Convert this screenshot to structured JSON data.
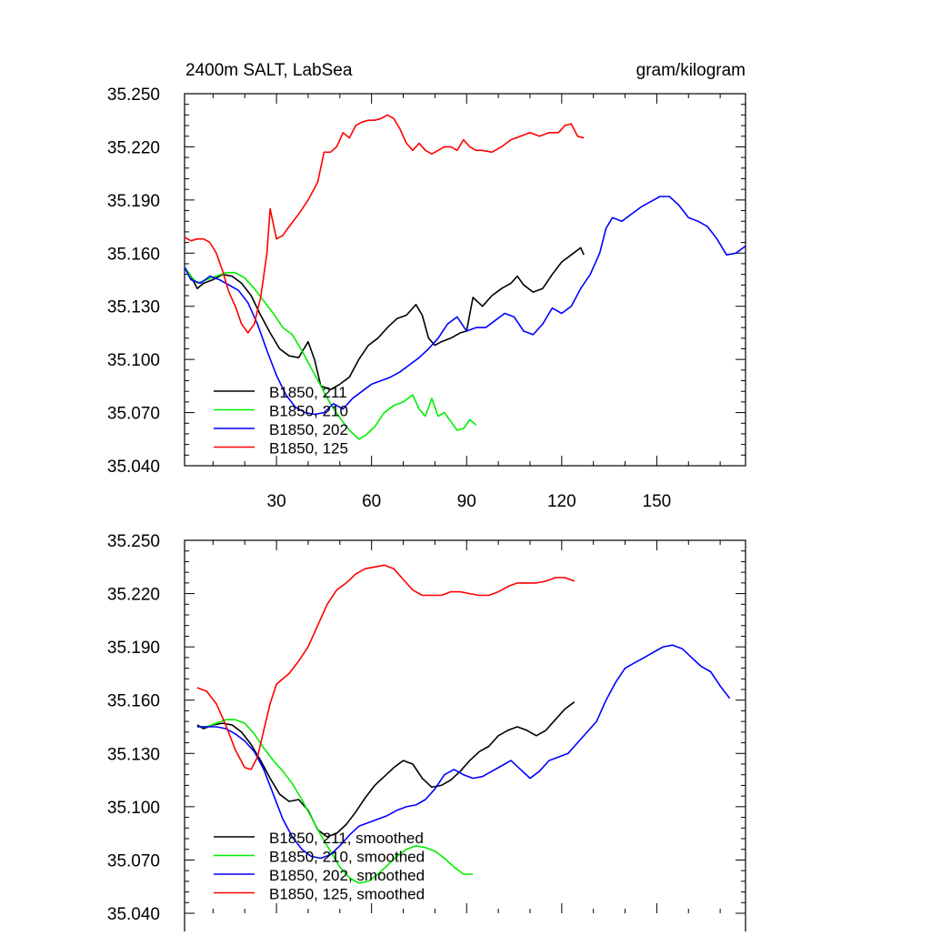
{
  "chart_data": [
    {
      "type": "line",
      "title_left": "2400m SALT, LabSea",
      "title_right": "gram/kilogram",
      "xlim": [
        1,
        178
      ],
      "ylim": [
        35.04,
        35.25
      ],
      "xticks": [
        30,
        60,
        90,
        120,
        150
      ],
      "xtick_labels": [
        "30",
        "60",
        "90",
        "120",
        "150"
      ],
      "yticks": [
        35.04,
        35.07,
        35.1,
        35.13,
        35.16,
        35.19,
        35.22,
        35.25
      ],
      "ytick_labels": [
        "35.040",
        "35.070",
        "35.100",
        "35.130",
        "35.160",
        "35.190",
        "35.220",
        "35.250"
      ],
      "legend_position": "bottom-left",
      "series": [
        {
          "name": "B1850, 211",
          "color": "#000000",
          "x": [
            1,
            3,
            5,
            7,
            10,
            13,
            16,
            19,
            22,
            25,
            28,
            31,
            34,
            37,
            40,
            42,
            44,
            47,
            50,
            53,
            56,
            59,
            62,
            65,
            68,
            71,
            74,
            76,
            78,
            80,
            82,
            85,
            88,
            90,
            92,
            95,
            98,
            101,
            104,
            106,
            108,
            111,
            114,
            117,
            120,
            123,
            126,
            127
          ],
          "y": [
            35.152,
            35.147,
            35.14,
            35.143,
            35.145,
            35.148,
            35.147,
            35.143,
            35.136,
            35.125,
            35.115,
            35.106,
            35.102,
            35.101,
            35.11,
            35.1,
            35.085,
            35.083,
            35.086,
            35.09,
            35.1,
            35.108,
            35.112,
            35.118,
            35.123,
            35.125,
            35.131,
            35.125,
            35.112,
            35.108,
            35.11,
            35.112,
            35.115,
            35.116,
            35.135,
            35.13,
            35.136,
            35.14,
            35.143,
            35.147,
            35.142,
            35.138,
            35.14,
            35.148,
            35.155,
            35.159,
            35.163,
            35.159
          ]
        },
        {
          "name": "B1850, 210",
          "color": "#00ee00",
          "x": [
            1,
            3,
            5,
            8,
            11,
            14,
            17,
            20,
            23,
            26,
            29,
            32,
            35,
            38,
            41,
            44,
            47,
            50,
            53,
            56,
            58,
            61,
            64,
            67,
            70,
            73,
            75,
            77,
            79,
            81,
            83,
            85,
            87,
            89,
            91,
            93
          ],
          "y": [
            35.152,
            35.147,
            35.143,
            35.145,
            35.147,
            35.149,
            35.149,
            35.146,
            35.14,
            35.133,
            35.126,
            35.118,
            35.114,
            35.105,
            35.095,
            35.085,
            35.075,
            35.067,
            35.06,
            35.055,
            35.057,
            35.062,
            35.07,
            35.074,
            35.076,
            35.08,
            35.072,
            35.068,
            35.078,
            35.068,
            35.07,
            35.065,
            35.06,
            35.061,
            35.066,
            35.063
          ]
        },
        {
          "name": "B1850, 202",
          "color": "#0000ff",
          "x": [
            1,
            3,
            6,
            9,
            12,
            15,
            18,
            21,
            24,
            27,
            30,
            33,
            36,
            39,
            42,
            45,
            48,
            51,
            54,
            57,
            60,
            63,
            66,
            69,
            72,
            75,
            78,
            81,
            84,
            87,
            90,
            93,
            96,
            99,
            102,
            105,
            108,
            111,
            114,
            117,
            120,
            123,
            126,
            129,
            132,
            134,
            136,
            139,
            142,
            145,
            148,
            151,
            154,
            157,
            160,
            163,
            166,
            169,
            172,
            175,
            178
          ],
          "y": [
            35.152,
            35.145,
            35.143,
            35.147,
            35.145,
            35.142,
            35.139,
            35.132,
            35.12,
            35.105,
            35.091,
            35.08,
            35.073,
            35.07,
            35.069,
            35.07,
            35.075,
            35.072,
            35.078,
            35.082,
            35.086,
            35.088,
            35.09,
            35.093,
            35.097,
            35.101,
            35.106,
            35.112,
            35.12,
            35.124,
            35.116,
            35.118,
            35.118,
            35.122,
            35.126,
            35.124,
            35.116,
            35.114,
            35.12,
            35.129,
            35.126,
            35.13,
            35.14,
            35.148,
            35.16,
            35.174,
            35.18,
            35.178,
            35.182,
            35.186,
            35.189,
            35.192,
            35.192,
            35.187,
            35.18,
            35.178,
            35.175,
            35.168,
            35.159,
            35.16,
            35.164
          ]
        },
        {
          "name": "B1850, 125",
          "color": "#ff0000",
          "x": [
            1,
            3,
            5,
            7,
            9,
            11,
            13,
            15,
            17,
            19,
            21,
            23,
            25,
            27,
            28,
            30,
            32,
            34,
            37,
            40,
            43,
            45,
            47,
            49,
            51,
            53,
            55,
            57,
            59,
            61,
            63,
            65,
            67,
            69,
            71,
            73,
            75,
            77,
            79,
            81,
            83,
            85,
            87,
            89,
            91,
            93,
            95,
            98,
            101,
            104,
            107,
            110,
            113,
            116,
            119,
            121,
            123,
            125,
            127
          ],
          "y": [
            35.169,
            35.167,
            35.168,
            35.168,
            35.166,
            35.16,
            35.15,
            35.138,
            35.13,
            35.12,
            35.115,
            35.12,
            35.135,
            35.16,
            35.185,
            35.168,
            35.17,
            35.175,
            35.182,
            35.19,
            35.2,
            35.217,
            35.217,
            35.22,
            35.228,
            35.225,
            35.232,
            35.234,
            35.235,
            35.235,
            35.236,
            35.238,
            35.236,
            35.23,
            35.222,
            35.218,
            35.222,
            35.218,
            35.216,
            35.218,
            35.22,
            35.22,
            35.218,
            35.224,
            35.22,
            35.218,
            35.218,
            35.217,
            35.22,
            35.224,
            35.226,
            35.228,
            35.226,
            35.228,
            35.228,
            35.232,
            35.233,
            35.226,
            35.225
          ]
        }
      ]
    },
    {
      "type": "line",
      "xlim": [
        1,
        178
      ],
      "ylim": [
        35.04,
        35.25
      ],
      "xticks": [
        30,
        60,
        90,
        120,
        150
      ],
      "yticks": [
        35.04,
        35.07,
        35.1,
        35.13,
        35.16,
        35.19,
        35.22,
        35.25
      ],
      "ytick_labels": [
        "35.040",
        "35.070",
        "35.100",
        "35.130",
        "35.160",
        "35.190",
        "35.220",
        "35.250"
      ],
      "legend_position": "bottom-left",
      "series": [
        {
          "name": "B1850, 211, smoothed",
          "color": "#000000",
          "x": [
            5,
            7,
            10,
            13,
            16,
            19,
            22,
            25,
            28,
            31,
            34,
            37,
            40,
            43,
            46,
            49,
            52,
            55,
            58,
            61,
            64,
            67,
            70,
            73,
            76,
            79,
            82,
            85,
            88,
            91,
            94,
            97,
            100,
            103,
            106,
            109,
            112,
            115,
            118,
            121,
            124
          ],
          "y": [
            35.146,
            35.144,
            35.146,
            35.147,
            35.146,
            35.142,
            35.135,
            35.126,
            35.116,
            35.107,
            35.103,
            35.104,
            35.098,
            35.087,
            35.083,
            35.085,
            35.09,
            35.097,
            35.105,
            35.112,
            35.117,
            35.122,
            35.126,
            35.124,
            35.116,
            35.111,
            35.112,
            35.115,
            35.12,
            35.126,
            35.131,
            35.134,
            35.14,
            35.143,
            35.145,
            35.143,
            35.14,
            35.143,
            35.149,
            35.155,
            35.159
          ]
        },
        {
          "name": "B1850, 210, smoothed",
          "color": "#00ee00",
          "x": [
            5,
            8,
            11,
            14,
            17,
            20,
            23,
            26,
            29,
            32,
            35,
            38,
            41,
            44,
            47,
            50,
            53,
            56,
            59,
            62,
            65,
            68,
            71,
            74,
            77,
            80,
            83,
            86,
            89,
            92
          ],
          "y": [
            35.145,
            35.145,
            35.147,
            35.149,
            35.149,
            35.147,
            35.141,
            35.133,
            35.126,
            35.12,
            35.113,
            35.104,
            35.094,
            35.084,
            35.075,
            35.066,
            35.06,
            35.057,
            35.058,
            35.062,
            35.067,
            35.072,
            35.076,
            35.078,
            35.077,
            35.075,
            35.071,
            35.066,
            35.062,
            35.062
          ]
        },
        {
          "name": "B1850, 202, smoothed",
          "color": "#0000ff",
          "x": [
            5,
            8,
            11,
            14,
            17,
            20,
            23,
            26,
            29,
            32,
            35,
            38,
            41,
            44,
            47,
            50,
            53,
            56,
            59,
            62,
            65,
            68,
            71,
            74,
            77,
            80,
            83,
            86,
            89,
            92,
            95,
            98,
            101,
            104,
            107,
            110,
            113,
            116,
            119,
            122,
            125,
            128,
            131,
            134,
            137,
            140,
            143,
            146,
            149,
            152,
            155,
            158,
            161,
            164,
            167,
            170,
            173
          ],
          "y": [
            35.145,
            35.145,
            35.145,
            35.144,
            35.141,
            35.137,
            35.131,
            35.121,
            35.107,
            35.093,
            35.083,
            35.076,
            35.072,
            35.071,
            35.073,
            35.078,
            35.084,
            35.089,
            35.091,
            35.093,
            35.095,
            35.098,
            35.1,
            35.101,
            35.104,
            35.11,
            35.118,
            35.121,
            35.118,
            35.116,
            35.117,
            35.12,
            35.123,
            35.126,
            35.121,
            35.116,
            35.12,
            35.126,
            35.128,
            35.13,
            35.136,
            35.142,
            35.148,
            35.16,
            35.17,
            35.178,
            35.181,
            35.184,
            35.187,
            35.19,
            35.191,
            35.189,
            35.184,
            35.179,
            35.176,
            35.168,
            35.161
          ]
        },
        {
          "name": "B1850, 125, smoothed",
          "color": "#ff0000",
          "x": [
            5,
            8,
            11,
            14,
            17,
            20,
            22,
            24,
            26,
            28,
            30,
            32,
            34,
            37,
            40,
            43,
            46,
            49,
            52,
            55,
            58,
            61,
            64,
            67,
            70,
            73,
            76,
            79,
            82,
            85,
            88,
            91,
            94,
            97,
            100,
            103,
            106,
            109,
            112,
            115,
            118,
            121,
            124
          ],
          "y": [
            35.167,
            35.165,
            35.158,
            35.146,
            35.132,
            35.122,
            35.121,
            35.128,
            35.143,
            35.158,
            35.169,
            35.172,
            35.175,
            35.182,
            35.19,
            35.202,
            35.214,
            35.222,
            35.226,
            35.231,
            35.234,
            35.235,
            35.236,
            35.234,
            35.228,
            35.222,
            35.219,
            35.219,
            35.219,
            35.221,
            35.221,
            35.22,
            35.219,
            35.219,
            35.221,
            35.224,
            35.226,
            35.226,
            35.226,
            35.227,
            35.229,
            35.229,
            35.227
          ]
        }
      ]
    }
  ]
}
